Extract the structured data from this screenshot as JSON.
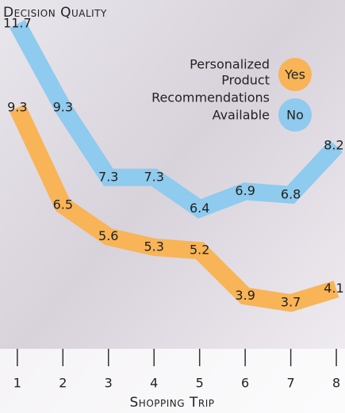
{
  "chart_data": {
    "type": "line",
    "title": "Decision Quality",
    "x_label": "Shopping Trip",
    "legend_title": [
      "Personalized",
      "Product",
      "Recommendations",
      "Available"
    ],
    "x": [
      1,
      2,
      3,
      4,
      5,
      6,
      7,
      8
    ],
    "xlim": [
      0.62,
      8.19
    ],
    "xticks": [
      1,
      2,
      3,
      4,
      5,
      6,
      7,
      8
    ],
    "ylim": [
      2.5,
      12
    ],
    "series": [
      {
        "name": "No",
        "color": "#8ecbee",
        "values": [
          11.7,
          9.3,
          7.3,
          7.3,
          6.4,
          6.9,
          6.8,
          8.2
        ]
      },
      {
        "name": "Yes",
        "color": "#f8b457",
        "values": [
          9.3,
          6.5,
          5.6,
          5.3,
          5.2,
          3.9,
          3.7,
          4.1
        ]
      }
    ]
  }
}
